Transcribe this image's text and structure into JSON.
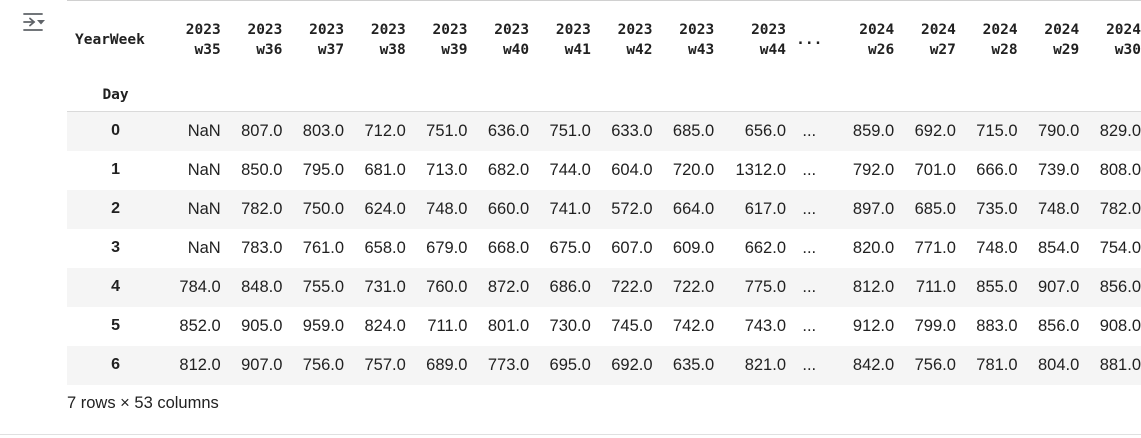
{
  "output_toggle": {
    "icon": "output-toggle-icon"
  },
  "table": {
    "columns_name": "YearWeek",
    "index_name": "Day",
    "ellipsis": "...",
    "columns": [
      {
        "year": "2023",
        "week": "w35"
      },
      {
        "year": "2023",
        "week": "w36"
      },
      {
        "year": "2023",
        "week": "w37"
      },
      {
        "year": "2023",
        "week": "w38"
      },
      {
        "year": "2023",
        "week": "w39"
      },
      {
        "year": "2023",
        "week": "w40"
      },
      {
        "year": "2023",
        "week": "w41"
      },
      {
        "year": "2023",
        "week": "w42"
      },
      {
        "year": "2023",
        "week": "w43"
      },
      {
        "year": "2023",
        "week": "w44"
      },
      {
        "year": "2024",
        "week": "w26"
      },
      {
        "year": "2024",
        "week": "w27"
      },
      {
        "year": "2024",
        "week": "w28"
      },
      {
        "year": "2024",
        "week": "w29"
      },
      {
        "year": "2024",
        "week": "w30"
      }
    ],
    "rows": [
      {
        "index": "0",
        "cells": [
          "NaN",
          "807.0",
          "803.0",
          "712.0",
          "751.0",
          "636.0",
          "751.0",
          "633.0",
          "685.0",
          "656.0",
          "...",
          "859.0",
          "692.0",
          "715.0",
          "790.0",
          "829.0"
        ]
      },
      {
        "index": "1",
        "cells": [
          "NaN",
          "850.0",
          "795.0",
          "681.0",
          "713.0",
          "682.0",
          "744.0",
          "604.0",
          "720.0",
          "1312.0",
          "...",
          "792.0",
          "701.0",
          "666.0",
          "739.0",
          "808.0"
        ]
      },
      {
        "index": "2",
        "cells": [
          "NaN",
          "782.0",
          "750.0",
          "624.0",
          "748.0",
          "660.0",
          "741.0",
          "572.0",
          "664.0",
          "617.0",
          "...",
          "897.0",
          "685.0",
          "735.0",
          "748.0",
          "782.0"
        ]
      },
      {
        "index": "3",
        "cells": [
          "NaN",
          "783.0",
          "761.0",
          "658.0",
          "679.0",
          "668.0",
          "675.0",
          "607.0",
          "609.0",
          "662.0",
          "...",
          "820.0",
          "771.0",
          "748.0",
          "854.0",
          "754.0"
        ]
      },
      {
        "index": "4",
        "cells": [
          "784.0",
          "848.0",
          "755.0",
          "731.0",
          "760.0",
          "872.0",
          "686.0",
          "722.0",
          "722.0",
          "775.0",
          "...",
          "812.0",
          "711.0",
          "855.0",
          "907.0",
          "856.0"
        ]
      },
      {
        "index": "5",
        "cells": [
          "852.0",
          "905.0",
          "959.0",
          "824.0",
          "711.0",
          "801.0",
          "730.0",
          "745.0",
          "742.0",
          "743.0",
          "...",
          "912.0",
          "799.0",
          "883.0",
          "856.0",
          "908.0"
        ]
      },
      {
        "index": "6",
        "cells": [
          "812.0",
          "907.0",
          "756.0",
          "757.0",
          "689.0",
          "773.0",
          "695.0",
          "692.0",
          "635.0",
          "821.0",
          "...",
          "842.0",
          "756.0",
          "781.0",
          "804.0",
          "881.0"
        ]
      }
    ],
    "summary": "7 rows × 53 columns"
  }
}
